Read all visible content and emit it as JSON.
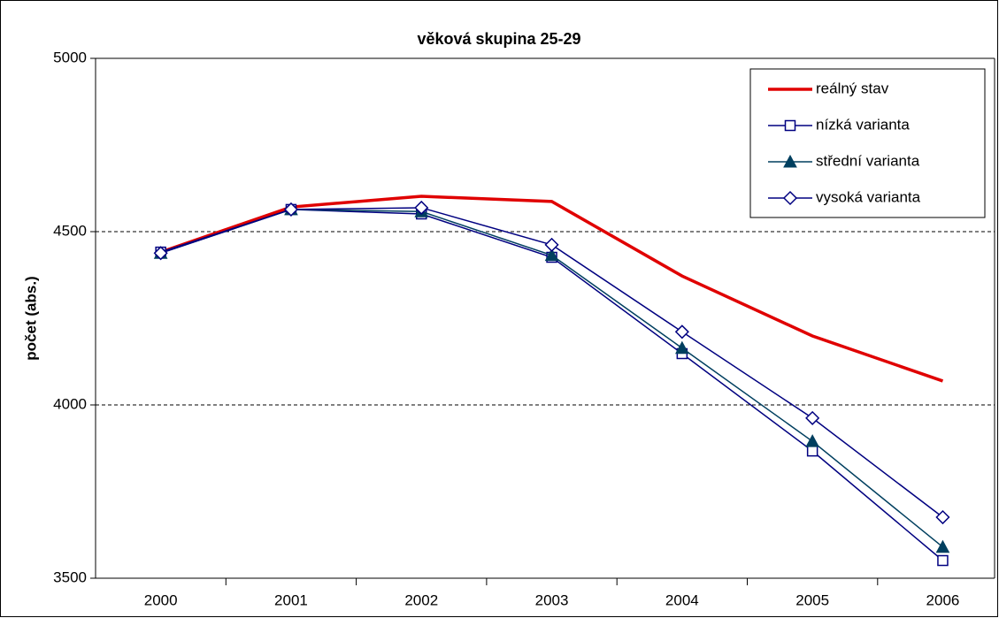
{
  "chart_data": {
    "type": "line",
    "title": "věková skupina 25-29",
    "y_label": "počet (abs.)",
    "categories": [
      "2000",
      "2001",
      "2002",
      "2003",
      "2004",
      "2005",
      "2006"
    ],
    "series": [
      {
        "name": "reálný stav",
        "color": "#e00000",
        "marker": "none",
        "values": [
          4441,
          4571,
          4602,
          4587,
          4372,
          4199,
          4069
        ]
      },
      {
        "name": "nízká varianta",
        "color": "#000080",
        "marker": "square",
        "values": [
          4441,
          4564,
          4551,
          4426,
          4148,
          3867,
          3551
        ]
      },
      {
        "name": "střední varianta",
        "color": "#003f5f",
        "marker": "triangle",
        "values": [
          4438,
          4564,
          4558,
          4432,
          4164,
          3895,
          3590
        ]
      },
      {
        "name": "vysoká varianta",
        "color": "#000080",
        "marker": "diamond",
        "values": [
          4438,
          4564,
          4569,
          4462,
          4211,
          3962,
          3676
        ]
      }
    ],
    "ylim": [
      3500,
      5000
    ],
    "yticks": [
      3500,
      4000,
      4500,
      5000
    ],
    "grid": true,
    "legend": "top-right"
  }
}
